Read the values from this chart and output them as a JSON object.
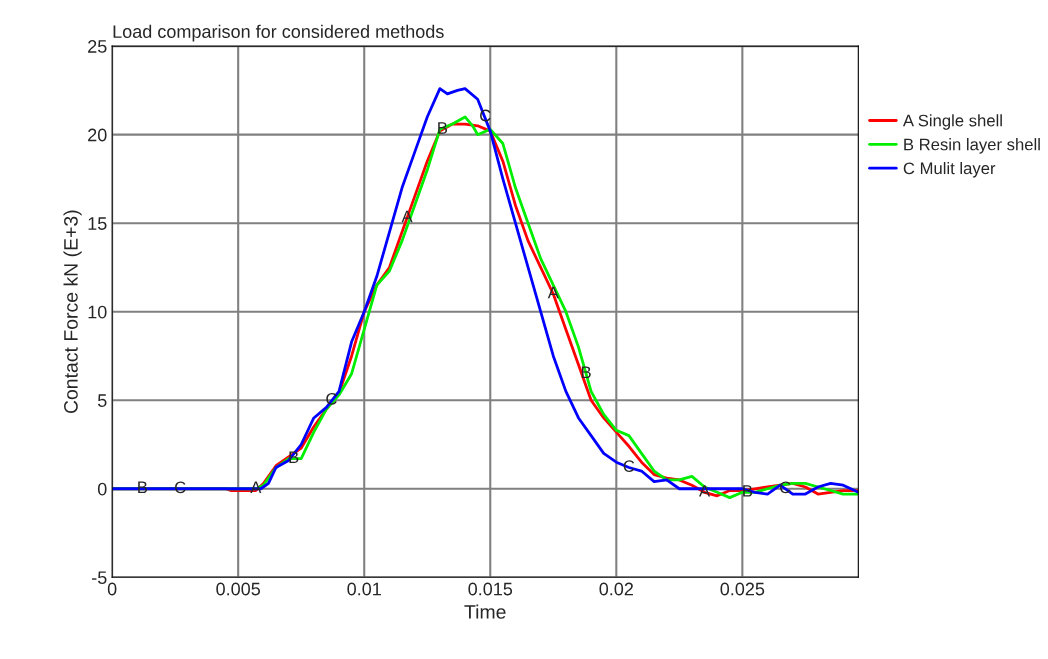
{
  "chart_data": {
    "type": "line",
    "title": "Load comparison for considered methods",
    "xlabel": "Time",
    "ylabel": "Contact Force kN (E+3)",
    "xlim": [
      0,
      0.0296
    ],
    "ylim": [
      -5,
      25
    ],
    "xticks": [
      0,
      0.005,
      0.01,
      0.015,
      0.02,
      0.025
    ],
    "yticks": [
      -5,
      0,
      5,
      10,
      15,
      20,
      25
    ],
    "grid": true,
    "legend": "right",
    "marker": "none",
    "line_style": "solid",
    "series": [
      {
        "name": "A Single shell",
        "color": "#ff0000",
        "x": [
          0,
          0.0045,
          0.0047,
          0.0057,
          0.006,
          0.0065,
          0.007,
          0.0075,
          0.008,
          0.0085,
          0.009,
          0.0095,
          0.01,
          0.0105,
          0.011,
          0.0115,
          0.012,
          0.0125,
          0.013,
          0.0135,
          0.014,
          0.0145,
          0.015,
          0.0155,
          0.016,
          0.0165,
          0.017,
          0.0175,
          0.018,
          0.0185,
          0.019,
          0.0195,
          0.02,
          0.0205,
          0.021,
          0.0215,
          0.022,
          0.0225,
          0.023,
          0.0235,
          0.024,
          0.0245,
          0.025,
          0.0255,
          0.026,
          0.0265,
          0.027,
          0.0275,
          0.028,
          0.0285,
          0.029,
          0.0296
        ],
        "values": [
          0,
          0,
          -0.1,
          -0.1,
          0.3,
          1.3,
          1.8,
          2.3,
          3.5,
          4.5,
          5.4,
          7.5,
          10,
          11.5,
          12.5,
          14.5,
          16.5,
          18.5,
          20.2,
          20.6,
          20.6,
          20.5,
          20.2,
          18.5,
          16,
          14,
          12.5,
          11,
          9,
          7,
          5,
          4,
          3.2,
          2.4,
          1.5,
          0.8,
          0.6,
          0.5,
          0.2,
          -0.2,
          -0.4,
          -0.1,
          -0.1,
          0,
          0.1,
          0.2,
          0.3,
          0.1,
          -0.3,
          -0.2,
          -0.1,
          -0.1
        ]
      },
      {
        "name": "B Resin layer shell",
        "color": "#00ee00",
        "x": [
          0,
          0.0057,
          0.006,
          0.0065,
          0.007,
          0.0075,
          0.008,
          0.0085,
          0.009,
          0.0095,
          0.01,
          0.0105,
          0.011,
          0.0115,
          0.012,
          0.0125,
          0.013,
          0.0135,
          0.014,
          0.0143,
          0.0145,
          0.015,
          0.0155,
          0.016,
          0.0165,
          0.017,
          0.0175,
          0.018,
          0.0185,
          0.019,
          0.0195,
          0.02,
          0.0205,
          0.021,
          0.0215,
          0.022,
          0.0225,
          0.023,
          0.0235,
          0.024,
          0.0245,
          0.025,
          0.0255,
          0.026,
          0.0265,
          0.027,
          0.0275,
          0.028,
          0.0285,
          0.029,
          0.0296
        ],
        "values": [
          0,
          0,
          0.2,
          1.2,
          1.7,
          1.7,
          3.2,
          4.5,
          5.3,
          6.5,
          9,
          11.5,
          12.3,
          14,
          16,
          18,
          20.3,
          20.6,
          21.0,
          20.5,
          20.0,
          20.3,
          19.5,
          17,
          15,
          13,
          11.5,
          10,
          8,
          5.5,
          4.2,
          3.3,
          3.0,
          2,
          1.0,
          0.5,
          0.5,
          0.7,
          0.1,
          -0.2,
          -0.5,
          -0.2,
          -0.2,
          0,
          0.2,
          0.3,
          0.3,
          0.1,
          -0.1,
          -0.3,
          -0.3
        ]
      },
      {
        "name": "C Mulit layer",
        "color": "#0000ff",
        "x": [
          0,
          0.0059,
          0.0062,
          0.0065,
          0.007,
          0.0075,
          0.008,
          0.0085,
          0.009,
          0.0095,
          0.01,
          0.0105,
          0.011,
          0.0115,
          0.012,
          0.0125,
          0.013,
          0.0133,
          0.0137,
          0.014,
          0.0145,
          0.015,
          0.0155,
          0.016,
          0.0165,
          0.017,
          0.0175,
          0.018,
          0.0185,
          0.019,
          0.0195,
          0.02,
          0.0205,
          0.021,
          0.0215,
          0.022,
          0.0225,
          0.023,
          0.024,
          0.025,
          0.0255,
          0.026,
          0.0265,
          0.027,
          0.0275,
          0.028,
          0.0285,
          0.029,
          0.0296
        ],
        "values": [
          0,
          0,
          0.3,
          1.2,
          1.6,
          2.5,
          4,
          4.6,
          5.5,
          8.3,
          10,
          12,
          14.5,
          17,
          19,
          21,
          22.6,
          22.3,
          22.5,
          22.6,
          22,
          20.2,
          17.5,
          15,
          12.5,
          10,
          7.5,
          5.5,
          4,
          3,
          2,
          1.5,
          1.2,
          1,
          0.4,
          0.5,
          0,
          0,
          0,
          0,
          -0.2,
          -0.3,
          0.2,
          -0.3,
          -0.3,
          0.1,
          0.3,
          0.2,
          -0.2
        ]
      }
    ],
    "annotations": [
      {
        "text": "B",
        "x": 0.0012,
        "y": 0
      },
      {
        "text": "C",
        "x": 0.0027,
        "y": 0
      },
      {
        "text": "A",
        "x": 0.0057,
        "y": 0
      },
      {
        "text": "B",
        "x": 0.0072,
        "y": 1.7
      },
      {
        "text": "C",
        "x": 0.0087,
        "y": 5.0
      },
      {
        "text": "A",
        "x": 0.0117,
        "y": 15.3
      },
      {
        "text": "B",
        "x": 0.0131,
        "y": 20.3
      },
      {
        "text": "C",
        "x": 0.0148,
        "y": 21.0
      },
      {
        "text": "A",
        "x": 0.0175,
        "y": 11.0
      },
      {
        "text": "B",
        "x": 0.0188,
        "y": 6.5
      },
      {
        "text": "C",
        "x": 0.0205,
        "y": 1.2
      },
      {
        "text": "A",
        "x": 0.0235,
        "y": -0.2
      },
      {
        "text": "B",
        "x": 0.0252,
        "y": -0.2
      },
      {
        "text": "C",
        "x": 0.0267,
        "y": 0
      }
    ]
  }
}
